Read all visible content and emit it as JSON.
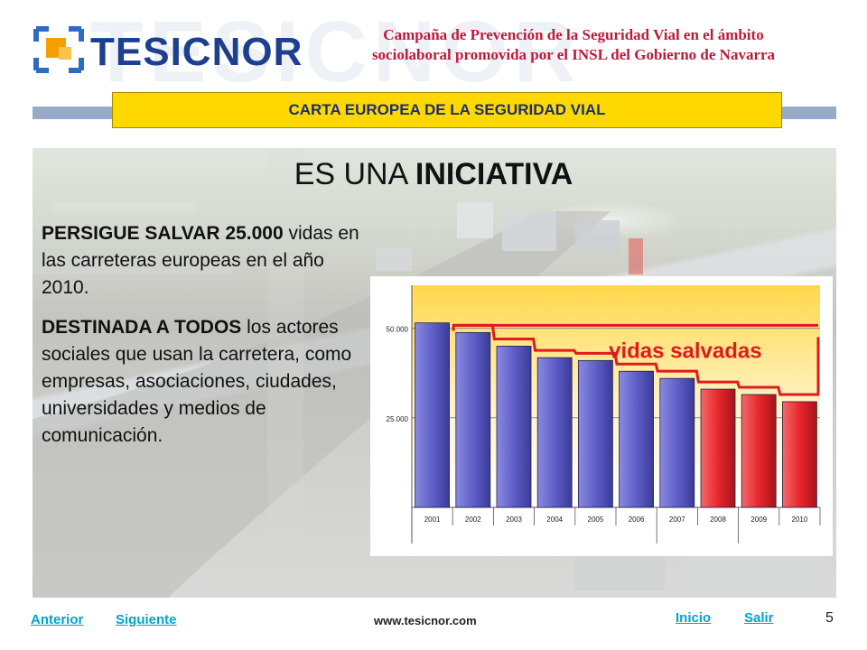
{
  "header": {
    "brand": "TESICNOR",
    "campaign_line1": "Campaña de Prevención de la Seguridad Vial en el ámbito",
    "campaign_line2": "sociolaboral promovida por el INSL del Gobierno de Navarra",
    "banner": "CARTA EUROPEA DE LA SEGURIDAD VIAL"
  },
  "slide": {
    "title_plain": "ES UNA ",
    "title_bold": "INICIATIVA",
    "para1_bold": "PERSIGUE  SALVAR 25.000",
    "para1_rest": " vidas en las carreteras europeas en el año 2010.",
    "para2_bold": "DESTINADA A TODOS",
    "para2_rest": " los actores sociales que usan la carretera, como empresas, asociaciones, ciudades, universidades y medios de comunicación."
  },
  "chart_data": {
    "type": "bar",
    "categories": [
      "2001",
      "2002",
      "2003",
      "2004",
      "2005",
      "2006",
      "2007",
      "2008",
      "2009",
      "2010"
    ],
    "values": [
      51500,
      48800,
      45000,
      41800,
      41000,
      38000,
      36000,
      33000,
      31500,
      29500
    ],
    "tick_labels": [
      "50.000",
      "25.000"
    ],
    "tick_values": [
      50000,
      25000
    ],
    "ylim": [
      0,
      62000
    ],
    "annotation": "vidas salvadas",
    "colors": {
      "blue_bar": "#5f5fc9",
      "red_bar": "#e8272c",
      "band": "#ffd84a",
      "outline": "#e01b1b"
    },
    "highlight_from_index": 7
  },
  "footer": {
    "prev": "Anterior",
    "next": "Siguiente",
    "website": "www.tesicnor.com",
    "home": "Inicio",
    "exit": "Salir",
    "page": "5"
  }
}
